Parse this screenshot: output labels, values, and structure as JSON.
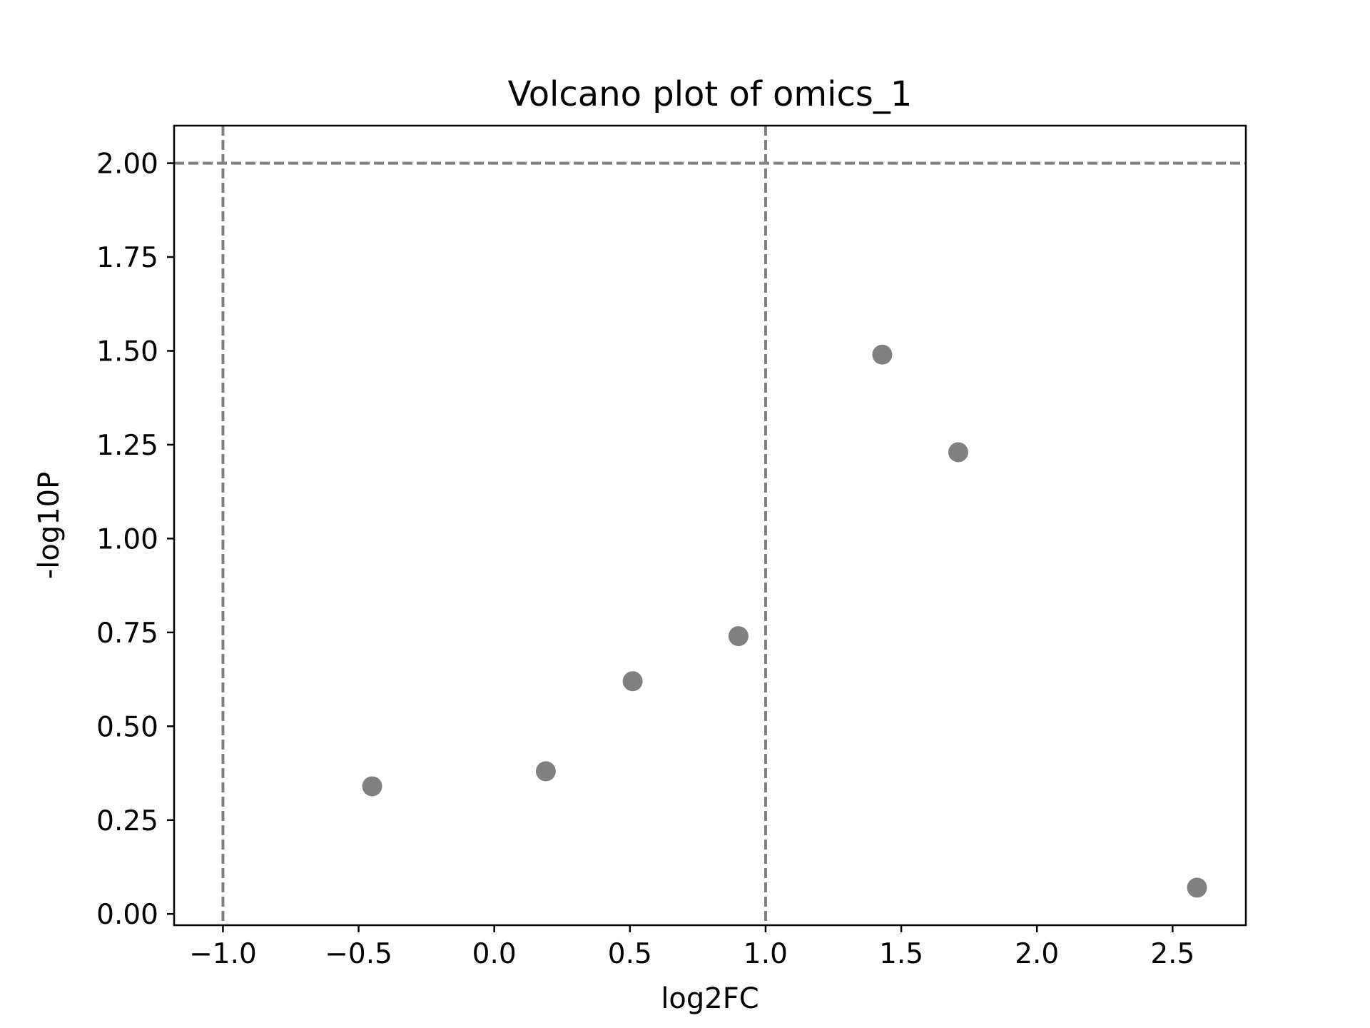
{
  "chart_data": {
    "type": "scatter",
    "title": "Volcano plot of omics_1",
    "xlabel": "log2FC",
    "ylabel": "-log10P",
    "xlim": [
      -1.18,
      2.77
    ],
    "ylim": [
      -0.03,
      2.1
    ],
    "xticks": [
      -1.0,
      -0.5,
      0.0,
      0.5,
      1.0,
      1.5,
      2.0,
      2.5
    ],
    "xtick_labels": [
      "−1.0",
      "−0.5",
      "0.0",
      "0.5",
      "1.0",
      "1.5",
      "2.0",
      "2.5"
    ],
    "yticks": [
      0.0,
      0.25,
      0.5,
      0.75,
      1.0,
      1.25,
      1.5,
      1.75,
      2.0
    ],
    "ytick_labels": [
      "0.00",
      "0.25",
      "0.50",
      "0.75",
      "1.00",
      "1.25",
      "1.50",
      "1.75",
      "2.00"
    ],
    "grid": false,
    "legend": false,
    "point_color": "#808080",
    "reference_line_color": "#808080",
    "vertical_reference_lines": [
      -1.0,
      1.0
    ],
    "horizontal_reference_lines": [
      2.0
    ],
    "points": [
      {
        "x": -0.45,
        "y": 0.34
      },
      {
        "x": 0.19,
        "y": 0.38
      },
      {
        "x": 0.51,
        "y": 0.62
      },
      {
        "x": 0.9,
        "y": 0.74
      },
      {
        "x": 1.43,
        "y": 1.49
      },
      {
        "x": 1.71,
        "y": 1.23
      },
      {
        "x": 2.59,
        "y": 0.07
      }
    ]
  }
}
